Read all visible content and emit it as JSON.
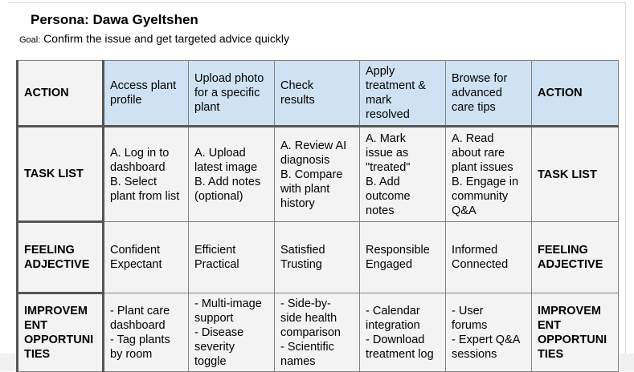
{
  "persona": {
    "label": "Persona: Dawa Gyeltshen"
  },
  "goal": {
    "label": "Goal:",
    "text": " Confirm the issue and get targeted advice quickly"
  },
  "row_headers": {
    "action": "ACTION",
    "task_list": "TASK LIST",
    "feeling": "FEELING ADJECTIVE",
    "improvement": "IMPROVEMENT OPPORTUNITIES"
  },
  "improvement_header_lines": [
    "IMPROVEM",
    "ENT",
    "OPPORTUNI",
    "TIES"
  ],
  "feeling_header_lines": [
    "FEELING",
    "ADJECTIVE"
  ],
  "stages": [
    {
      "action": [
        "Access plant",
        "profile"
      ],
      "tasks": [
        "A. Log in to",
        "dashboard",
        "B. Select",
        "plant from list"
      ],
      "feelings": [
        "Confident",
        "Expectant"
      ],
      "improvements": [
        "- Plant care",
        "dashboard",
        "- Tag plants",
        "by room"
      ]
    },
    {
      "action": [
        "Upload photo",
        "for a specific",
        "plant"
      ],
      "tasks": [
        "A. Upload",
        "latest image",
        "B. Add notes",
        "(optional)"
      ],
      "feelings": [
        "Efficient",
        "Practical"
      ],
      "improvements": [
        "- Multi-image",
        "support",
        "- Disease",
        "severity",
        "toggle"
      ]
    },
    {
      "action": [
        "Check",
        "results"
      ],
      "tasks": [
        "A. Review AI",
        "diagnosis",
        "B. Compare",
        "with plant",
        "history"
      ],
      "feelings": [
        "Satisfied",
        "Trusting"
      ],
      "improvements": [
        "- Side-by-",
        "side health",
        "comparison",
        "- Scientific",
        "names"
      ]
    },
    {
      "action": [
        "Apply",
        "treatment &",
        "mark",
        "resolved"
      ],
      "tasks": [
        "A. Mark",
        "issue as",
        "\"treated\"",
        "B. Add",
        "outcome",
        "notes"
      ],
      "feelings": [
        "Responsible",
        "Engaged"
      ],
      "improvements": [
        "- Calendar",
        "integration",
        "- Download",
        "treatment log"
      ]
    },
    {
      "action": [
        "Browse for",
        "advanced",
        "care tips"
      ],
      "tasks": [
        "A. Read",
        "about rare",
        "plant issues",
        "B. Engage in",
        "community",
        "Q&A"
      ],
      "feelings": [
        "Informed",
        "Connected"
      ],
      "improvements": [
        "- User",
        "forums",
        "- Expert Q&A",
        "sessions"
      ]
    }
  ]
}
